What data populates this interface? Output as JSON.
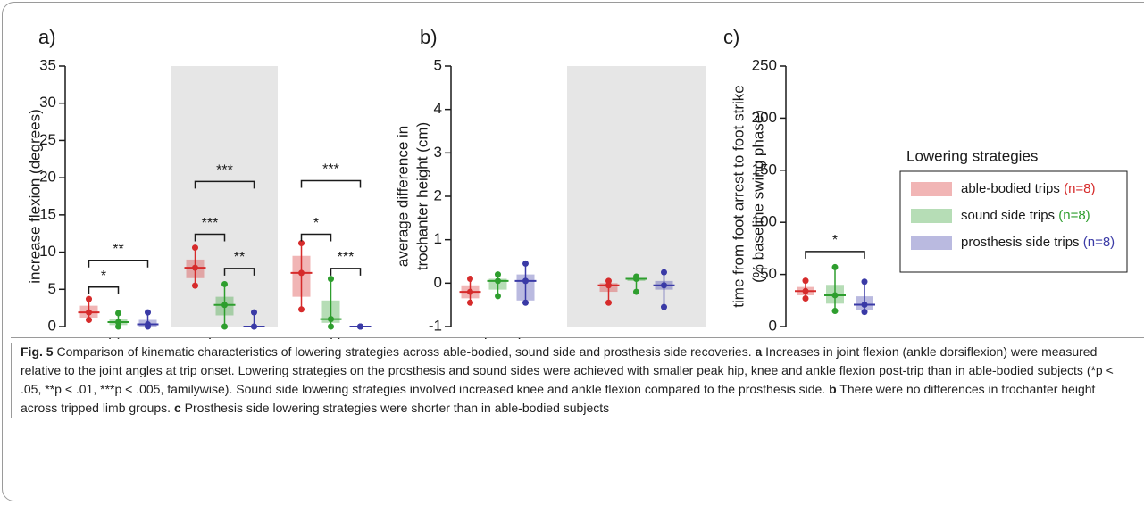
{
  "chart_data": [
    {
      "type": "box",
      "panel_label": "a)",
      "ylabel": [
        "increase flexion (degrees)"
      ],
      "categories": [
        "hip",
        "knee",
        "ankle"
      ],
      "shaded_categories": [
        1
      ],
      "ylim": [
        0,
        35
      ],
      "yticks": [
        0,
        5,
        10,
        15,
        20,
        25,
        30,
        35
      ],
      "series": [
        {
          "name": "able-bodied trips",
          "sample": "(n=8)",
          "color": "#d62b2b",
          "values": [
            {
              "min": 0.9,
              "q1": 1.2,
              "median": 1.9,
              "q3": 2.8,
              "max": 3.7
            },
            {
              "min": 5.5,
              "q1": 6.5,
              "median": 7.9,
              "q3": 9.0,
              "max": 10.6
            },
            {
              "min": 2.3,
              "q1": 4.0,
              "median": 7.2,
              "q3": 9.5,
              "max": 11.2
            }
          ]
        },
        {
          "name": "sound side trips",
          "sample": "(n=8)",
          "color": "#2e9e2e",
          "values": [
            {
              "min": 0,
              "q1": 0.2,
              "median": 0.6,
              "q3": 1.0,
              "max": 1.8
            },
            {
              "min": 0,
              "q1": 1.5,
              "median": 2.9,
              "q3": 4.0,
              "max": 5.7
            },
            {
              "min": 0,
              "q1": 0.5,
              "median": 1.0,
              "q3": 3.5,
              "max": 6.4
            }
          ]
        },
        {
          "name": "prosthesis side trips",
          "sample": "(n=8)",
          "color": "#3a3aa6",
          "values": [
            {
              "min": 0,
              "q1": 0,
              "median": 0.3,
              "q3": 0.9,
              "max": 1.9
            },
            {
              "min": 0,
              "q1": 0,
              "median": 0,
              "q3": 0,
              "max": 1.9
            },
            {
              "min": 0,
              "q1": 0,
              "median": 0,
              "q3": 0,
              "max": 0
            }
          ]
        }
      ],
      "annotations": [
        {
          "label": "*",
          "category": 0,
          "from": 0,
          "to": 1,
          "y": 5.3
        },
        {
          "label": "**",
          "category": 0,
          "from": 0,
          "to": 2,
          "y": 8.9
        },
        {
          "label": "***",
          "category": 1,
          "from": 0,
          "to": 1,
          "y": 12.4
        },
        {
          "label": "***",
          "category": 1,
          "from": 0,
          "to": 2,
          "y": 19.5
        },
        {
          "label": "**",
          "category": 1,
          "from": 1,
          "to": 2,
          "y": 7.8
        },
        {
          "label": "*",
          "category": 2,
          "from": 0,
          "to": 1,
          "y": 12.4
        },
        {
          "label": "***",
          "category": 2,
          "from": 0,
          "to": 2,
          "y": 19.6
        },
        {
          "label": "***",
          "category": 2,
          "from": 1,
          "to": 2,
          "y": 7.8
        }
      ]
    },
    {
      "type": "box",
      "panel_label": "b)",
      "ylabel": [
        "average difference in",
        "trochanter height (cm)"
      ],
      "categories": [
        "tripped side",
        "support side"
      ],
      "shaded_categories": [
        1
      ],
      "ylim": [
        -1,
        5
      ],
      "yticks": [
        -1,
        0,
        1,
        2,
        3,
        4,
        5
      ],
      "series": [
        {
          "name": "able-bodied trips",
          "color": "#d62b2b",
          "values": [
            {
              "min": -0.45,
              "q1": -0.35,
              "median": -0.2,
              "q3": -0.05,
              "max": 0.1
            },
            {
              "min": -0.45,
              "q1": -0.2,
              "median": -0.05,
              "q3": 0.0,
              "max": 0.05
            }
          ]
        },
        {
          "name": "sound side trips",
          "color": "#2e9e2e",
          "values": [
            {
              "min": -0.3,
              "q1": -0.15,
              "median": 0.05,
              "q3": 0.1,
              "max": 0.2
            },
            {
              "min": -0.2,
              "q1": 0.05,
              "median": 0.1,
              "q3": 0.1,
              "max": 0.15
            }
          ]
        },
        {
          "name": "prosthesis side trips",
          "color": "#3a3aa6",
          "values": [
            {
              "min": -0.45,
              "q1": -0.4,
              "median": 0.05,
              "q3": 0.2,
              "max": 0.45
            },
            {
              "min": -0.55,
              "q1": -0.15,
              "median": -0.05,
              "q3": 0.05,
              "max": 0.25
            }
          ]
        }
      ],
      "annotations": []
    },
    {
      "type": "box",
      "panel_label": "c)",
      "ylabel": [
        "time from foot arrest to foot strike",
        "(% baseline swing phase)"
      ],
      "categories": [
        null
      ],
      "shaded_categories": [],
      "ylim": [
        0,
        250
      ],
      "yticks": [
        0,
        50,
        100,
        150,
        200,
        250
      ],
      "series": [
        {
          "name": "able-bodied trips",
          "color": "#d62b2b",
          "values": [
            {
              "min": 27,
              "q1": 30,
              "median": 34,
              "q3": 38,
              "max": 44
            }
          ]
        },
        {
          "name": "sound side trips",
          "color": "#2e9e2e",
          "values": [
            {
              "min": 15,
              "q1": 22,
              "median": 30,
              "q3": 40,
              "max": 57
            }
          ]
        },
        {
          "name": "prosthesis side trips",
          "color": "#3a3aa6",
          "values": [
            {
              "min": 14,
              "q1": 16,
              "median": 21,
              "q3": 29,
              "max": 43
            }
          ]
        }
      ],
      "annotations": [
        {
          "label": "*",
          "category": 0,
          "from": 0,
          "to": 2,
          "y": 72
        }
      ]
    }
  ],
  "legend": {
    "title": "Lowering strategies"
  },
  "caption": [
    {
      "text": "Fig. 5",
      "bold": true
    },
    {
      "text": " Comparison of kinematic characteristics of lowering strategies across able-bodied, sound side and prosthesis side recoveries. ",
      "bold": false
    },
    {
      "text": "a",
      "bold": true
    },
    {
      "text": " Increases in joint flexion (ankle dorsiflexion) were measured relative to the joint angles at trip onset. Lowering strategies on the prosthesis and sound sides were achieved with smaller peak hip, knee and ankle flexion post-trip than in able-bodied subjects (*p < .05, **p < .01, ***p < .005, familywise). Sound side lowering strategies involved increased knee and ankle flexion compared to the prosthesis side. ",
      "bold": false
    },
    {
      "text": "b",
      "bold": true
    },
    {
      "text": " There were no differences in trochanter height across tripped limb groups. ",
      "bold": false
    },
    {
      "text": "c",
      "bold": true
    },
    {
      "text": " Prosthesis side lowering strategies were shorter than in able-bodied subjects",
      "bold": false
    }
  ]
}
